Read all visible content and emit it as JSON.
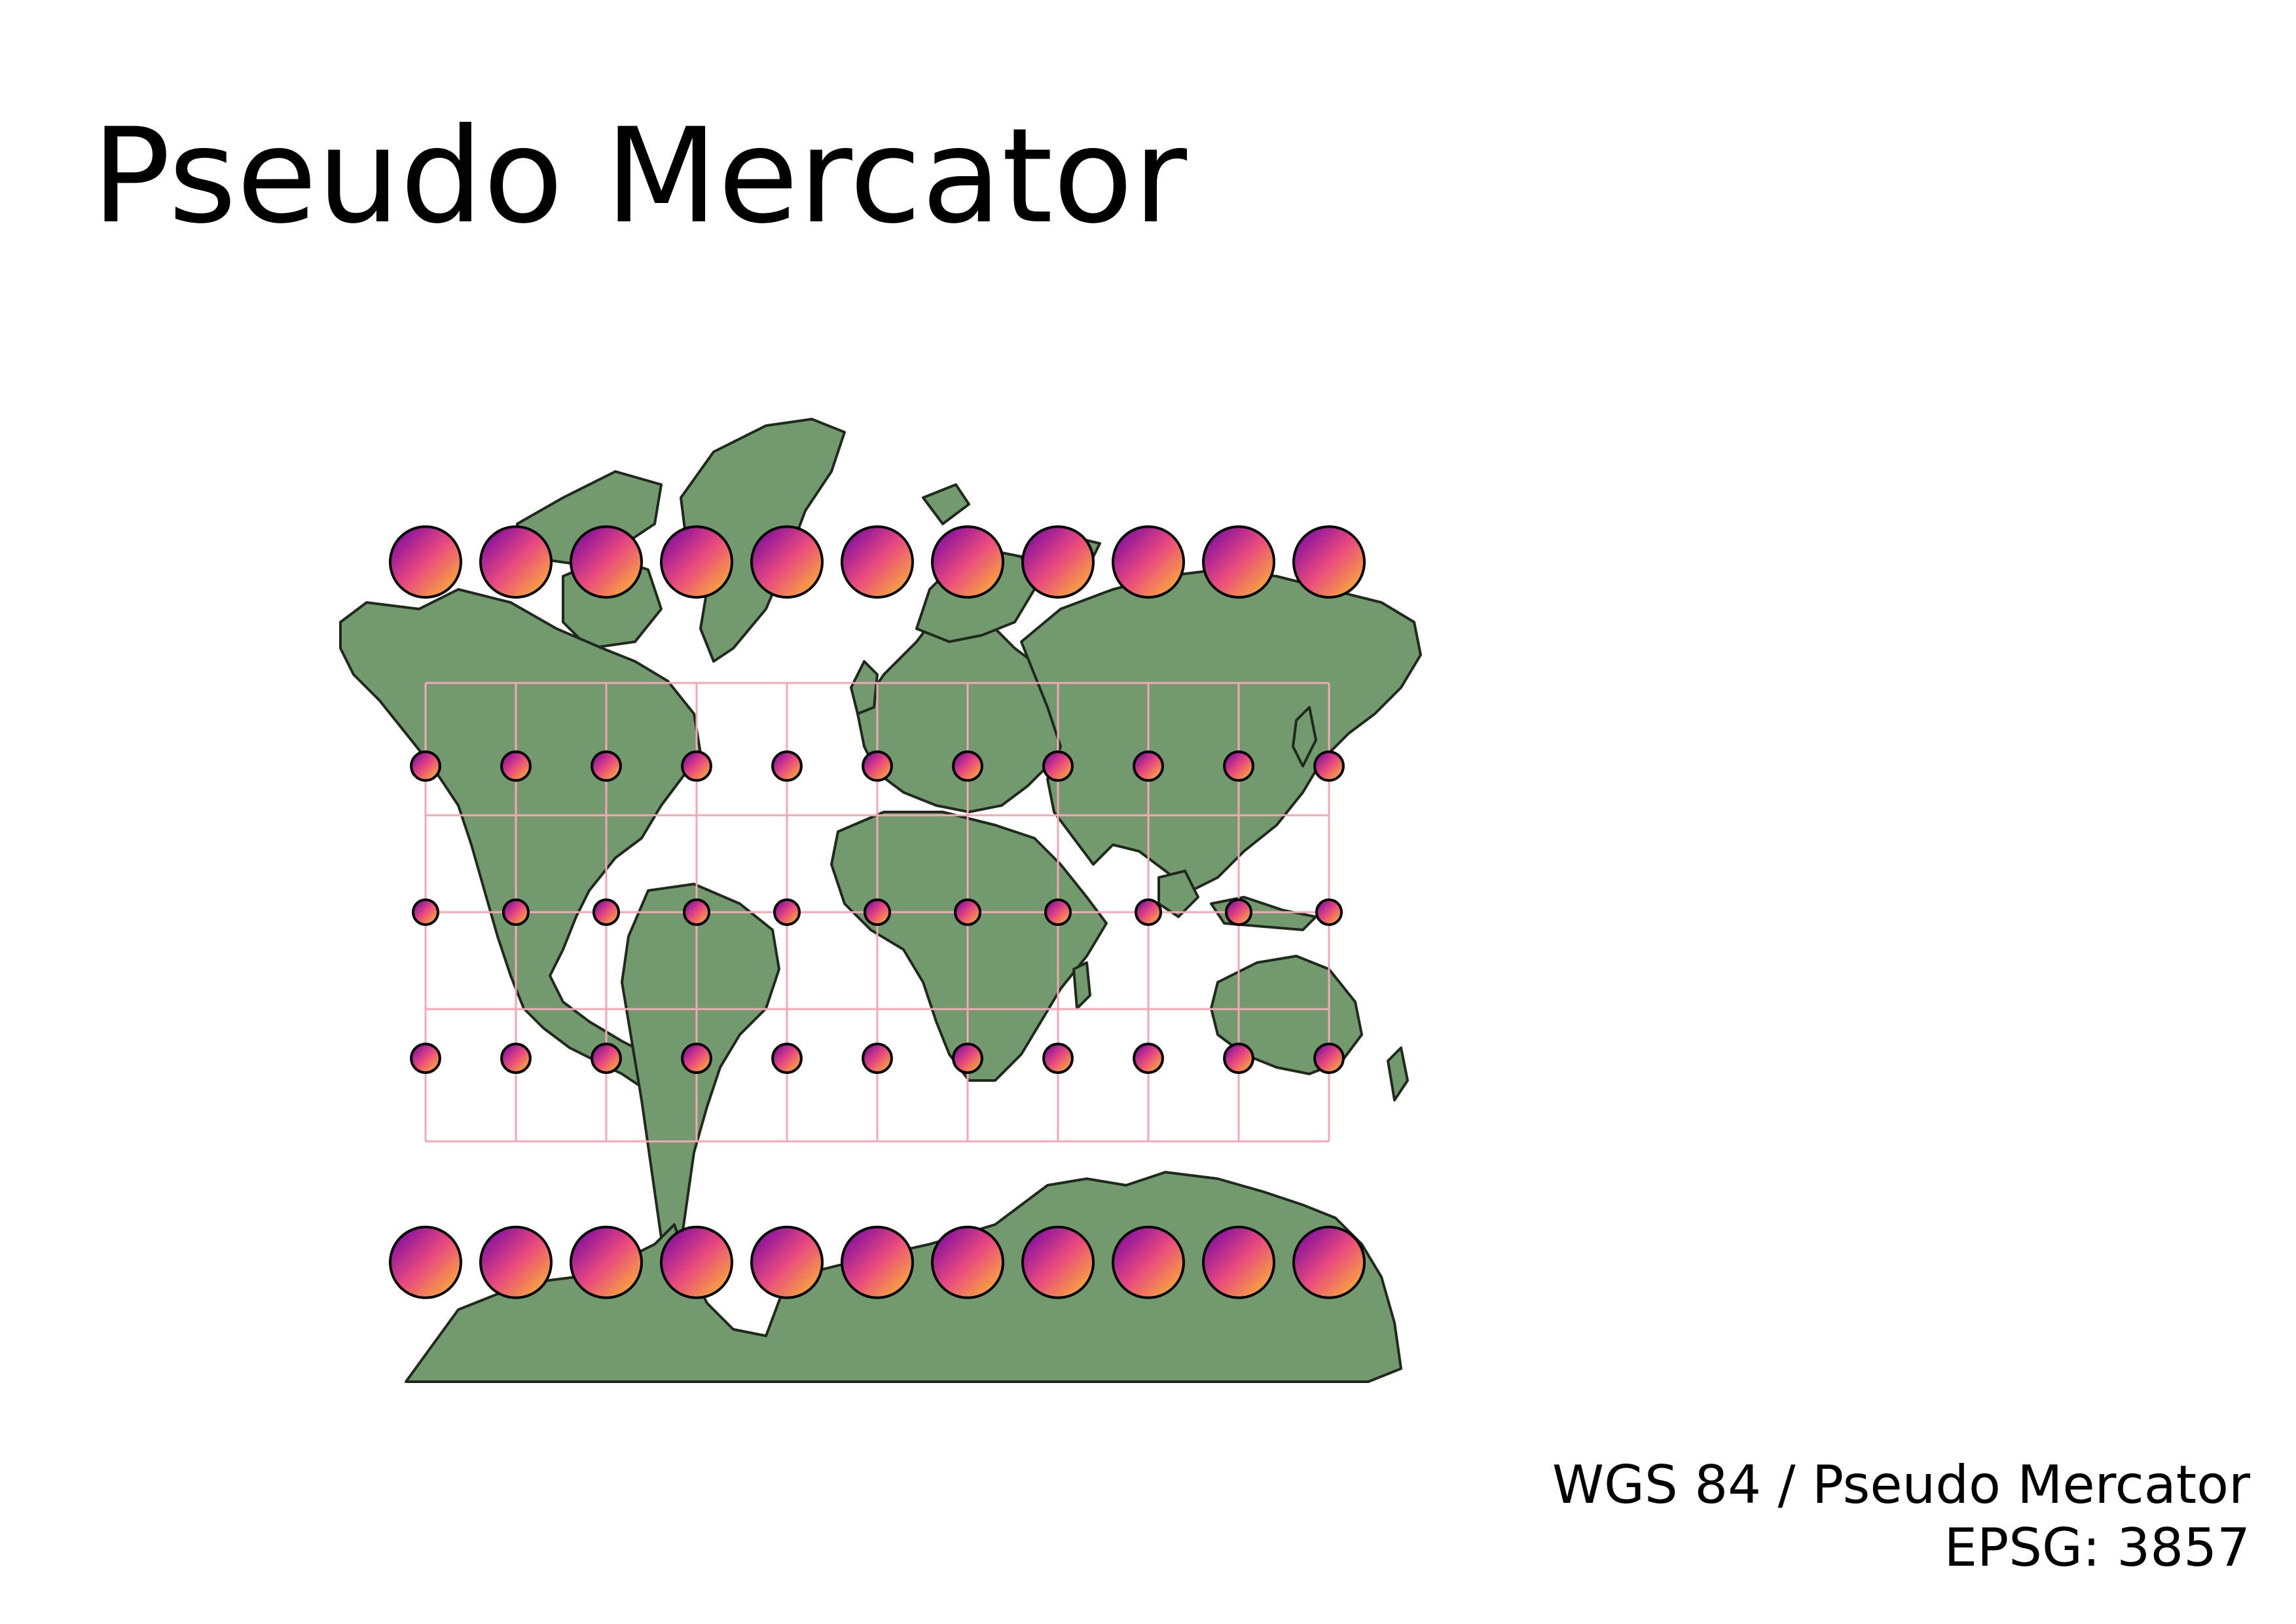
{
  "title": "Pseudo Mercator",
  "crs": {
    "name": "WGS 84 / Pseudo Mercator",
    "code": "EPSG: 3857"
  },
  "colors": {
    "land": "#739a6e",
    "border": "#1f2a1d",
    "graticule": "#f4a7b4",
    "circle_start": "#6a00a8",
    "circle_mid": "#e8497e",
    "circle_end": "#fdc328",
    "circle_stroke": "#000000"
  },
  "tissot": {
    "longitudes": [
      -150,
      -120,
      -90,
      -60,
      -30,
      0,
      30,
      60,
      90,
      120,
      150
    ],
    "latitudes": [
      60,
      30,
      0,
      -30,
      -60
    ],
    "radius_km": 500
  }
}
